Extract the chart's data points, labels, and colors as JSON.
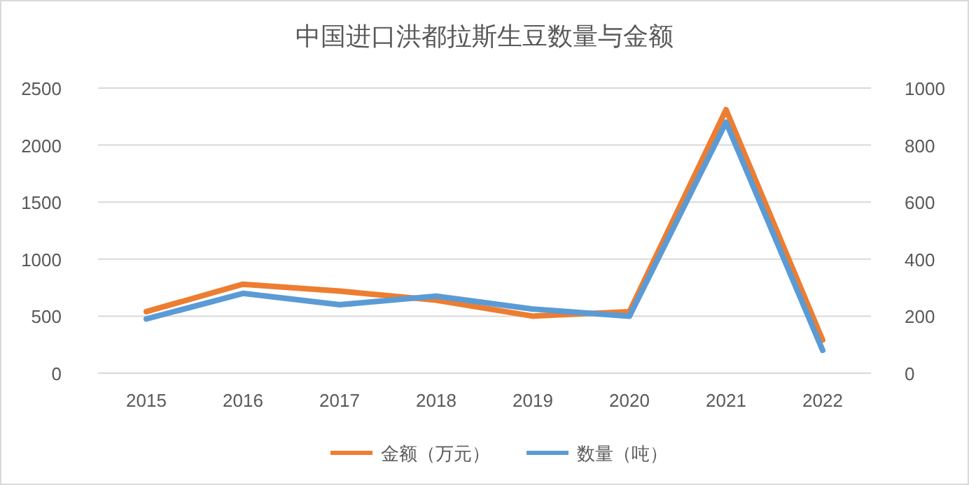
{
  "chart_data": {
    "type": "line",
    "title": "中国进口洪都拉斯生豆数量与金额",
    "categories": [
      "2015",
      "2016",
      "2017",
      "2018",
      "2019",
      "2020",
      "2021",
      "2022"
    ],
    "series": [
      {
        "name": "金额（万元）",
        "color": "#ed7d31",
        "values": [
          540,
          780,
          720,
          640,
          500,
          540,
          2310,
          290
        ]
      },
      {
        "name": "数量（吨）",
        "color": "#5b9bd5",
        "axis": "y2",
        "values": [
          190,
          280,
          240,
          270,
          225,
          200,
          880,
          80
        ]
      }
    ],
    "ylim": [
      0,
      2500
    ],
    "yticks": [
      0,
      500,
      1000,
      1500,
      2000,
      2500
    ],
    "y2lim": [
      0,
      1000
    ],
    "y2ticks": [
      0,
      200,
      400,
      600,
      800,
      1000
    ],
    "grid": "y",
    "legend": "bottom",
    "marker": "none",
    "line_style": "solid"
  }
}
